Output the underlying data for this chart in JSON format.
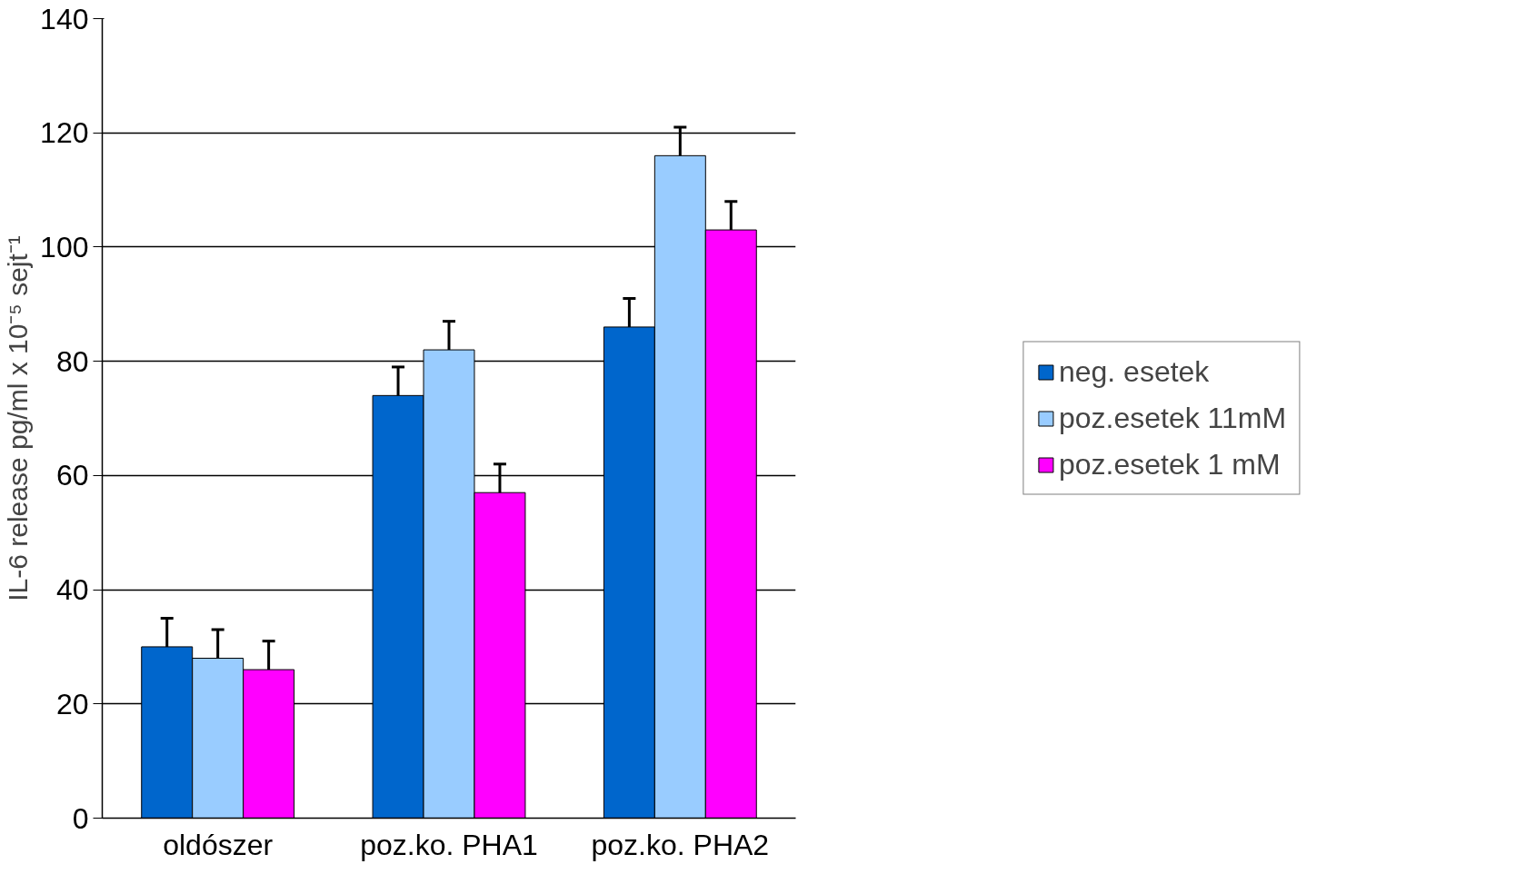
{
  "chart_data": {
    "type": "bar",
    "ylabel": "IL-6 release pg/ml x 10⁻⁵ sejt⁻¹",
    "categories": [
      "oldószer",
      "poz.ko. PHA1",
      "poz.ko. PHA2"
    ],
    "series": [
      {
        "name": "neg. esetek",
        "color": "#0066cc",
        "values": [
          30,
          74,
          86
        ],
        "errors": [
          5,
          5,
          5
        ]
      },
      {
        "name": "poz.esetek 11mM",
        "color": "#99ccff",
        "values": [
          28,
          82,
          116
        ],
        "errors": [
          5,
          5,
          5
        ]
      },
      {
        "name": "poz.esetek 1 mM",
        "color": "#ff00ff",
        "values": [
          26,
          57,
          103
        ],
        "errors": [
          5,
          5,
          5
        ]
      }
    ],
    "ylim": [
      0,
      140
    ],
    "yticks": [
      0,
      20,
      40,
      60,
      80,
      100,
      120,
      140
    ],
    "grid": "y",
    "legend": "right"
  }
}
